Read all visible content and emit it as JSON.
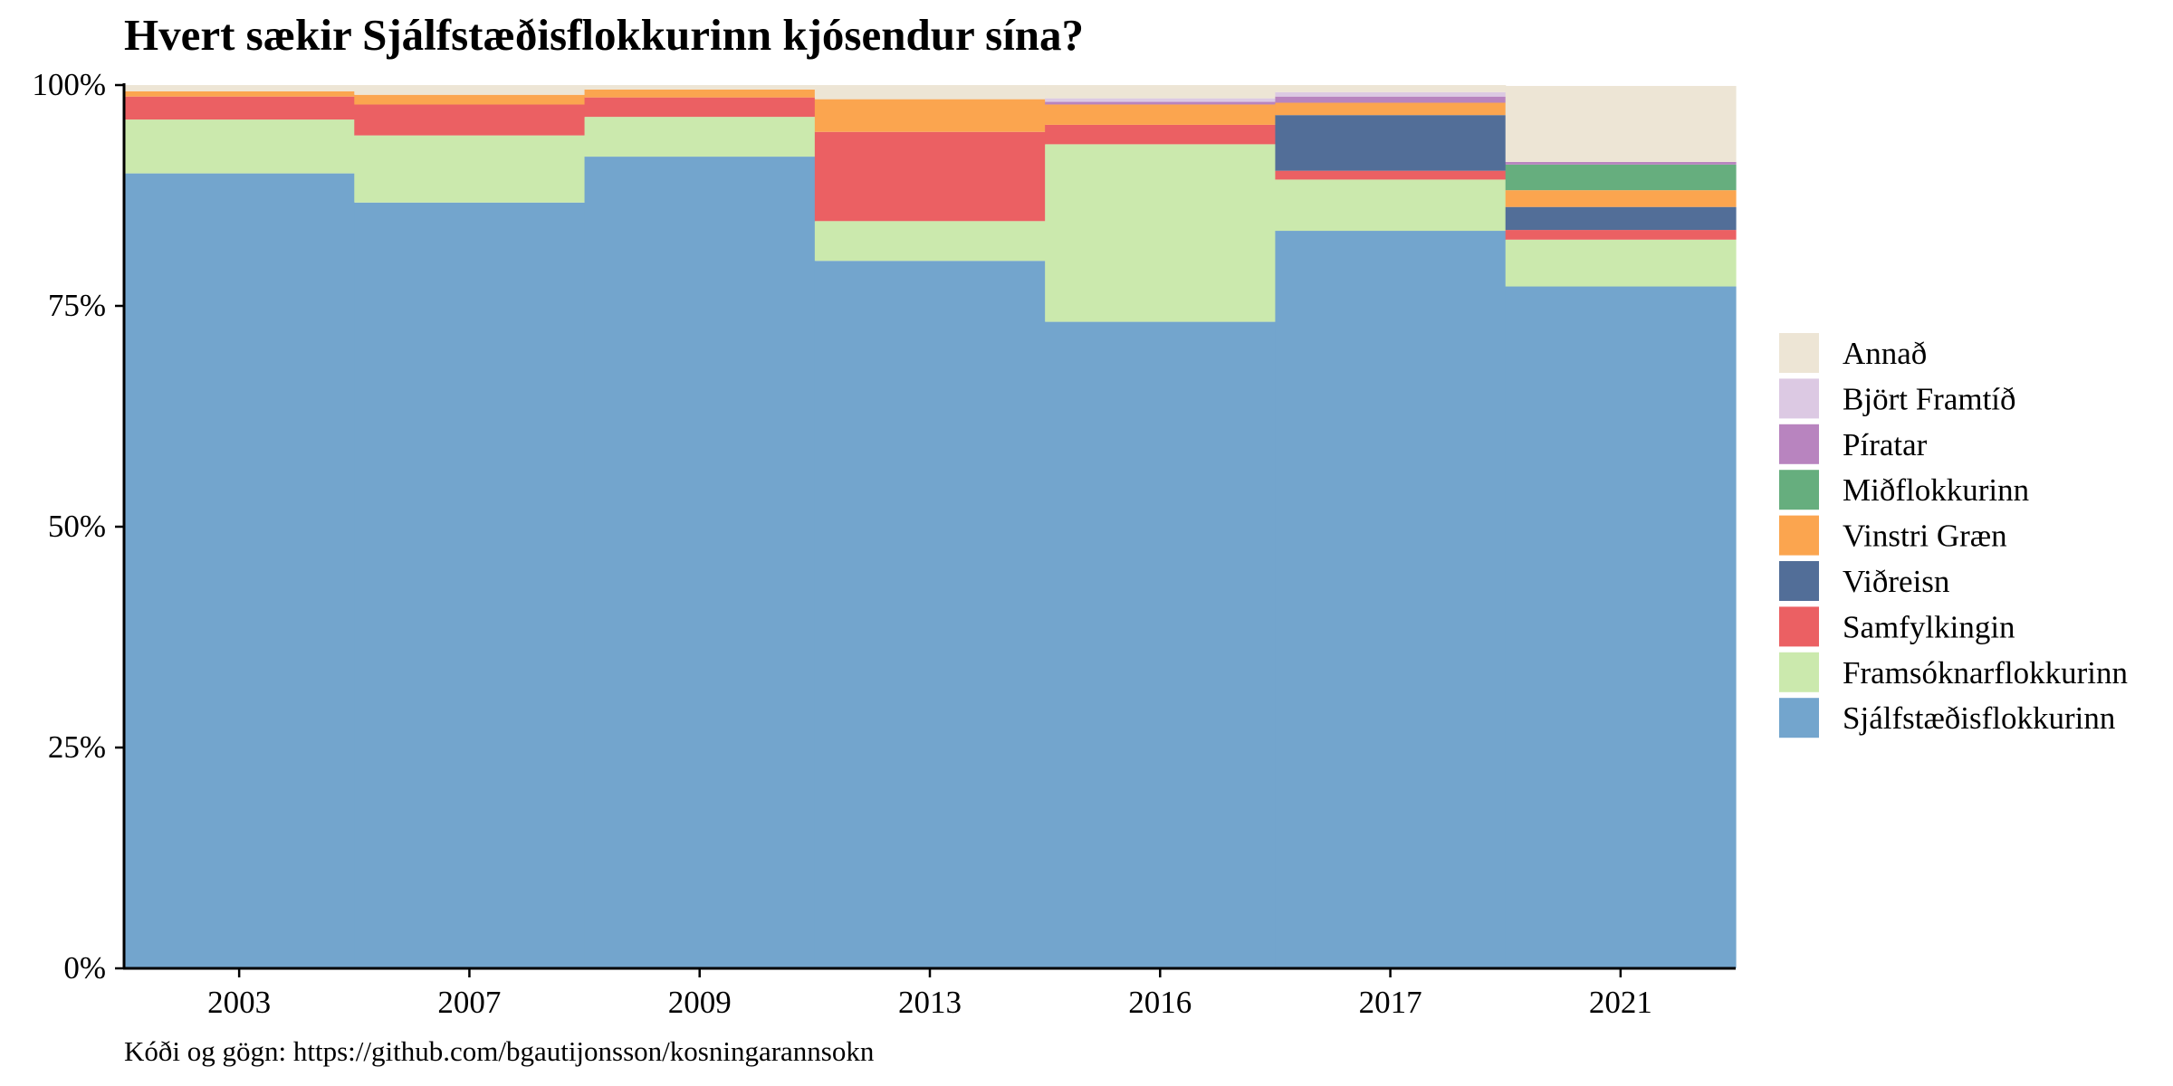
{
  "chart_data": {
    "type": "bar",
    "stacked": true,
    "normalized": true,
    "title": "Hvert sækir Sjálfstæðisflokkurinn kjósendur sína?",
    "caption": "Kóði og gögn: https://github.com/bgautijonsson/kosningarannsokn",
    "xlabel": "",
    "ylabel": "",
    "ylim": [
      0,
      100
    ],
    "yticks": [
      0,
      25,
      50,
      75,
      100
    ],
    "ytick_labels": [
      "0%",
      "25%",
      "50%",
      "75%",
      "100%"
    ],
    "grid": false,
    "legend_position": "right",
    "categories": [
      "2003",
      "2007",
      "2009",
      "2013",
      "2016",
      "2017",
      "2021"
    ],
    "series": [
      {
        "name": "Sjálfstæðisflokkurinn",
        "color": "#73a5cd",
        "values": [
          90.0,
          86.7,
          91.9,
          80.1,
          73.2,
          83.5,
          77.2
        ]
      },
      {
        "name": "Framsóknarflokkurinn",
        "color": "#cbe9ad",
        "values": [
          6.1,
          7.6,
          4.5,
          4.5,
          20.1,
          5.8,
          5.3
        ]
      },
      {
        "name": "Samfylkingin",
        "color": "#eb6063",
        "values": [
          2.6,
          3.5,
          2.2,
          10.1,
          2.2,
          1.0,
          1.1
        ]
      },
      {
        "name": "Viðreisn",
        "color": "#526e98",
        "values": [
          0,
          0,
          0,
          0,
          0,
          6.3,
          2.6
        ]
      },
      {
        "name": "Vinstri Græn",
        "color": "#fba54f",
        "values": [
          0.6,
          1.1,
          0.9,
          3.7,
          2.3,
          1.4,
          1.9
        ]
      },
      {
        "name": "Miðflokkurinn",
        "color": "#66ae7e",
        "values": [
          0,
          0,
          0,
          0,
          0,
          0,
          2.9
        ]
      },
      {
        "name": "Píratar",
        "color": "#b884bf",
        "values": [
          0,
          0,
          0,
          0,
          0.3,
          0.7,
          0.3
        ]
      },
      {
        "name": "Björt Framtíð",
        "color": "#dcc9e3",
        "values": [
          0,
          0,
          0,
          0,
          0.4,
          0.5,
          0
        ]
      },
      {
        "name": "Annað",
        "color": "#ede5d5",
        "values": [
          0.7,
          1.1,
          0.5,
          1.6,
          1.5,
          0.8,
          8.6
        ]
      }
    ],
    "legend_order": [
      "Annað",
      "Björt Framtíð",
      "Píratar",
      "Miðflokkurinn",
      "Vinstri Græn",
      "Viðreisn",
      "Samfylkingin",
      "Framsóknarflokkurinn",
      "Sjálfstæðisflokkurinn"
    ]
  }
}
